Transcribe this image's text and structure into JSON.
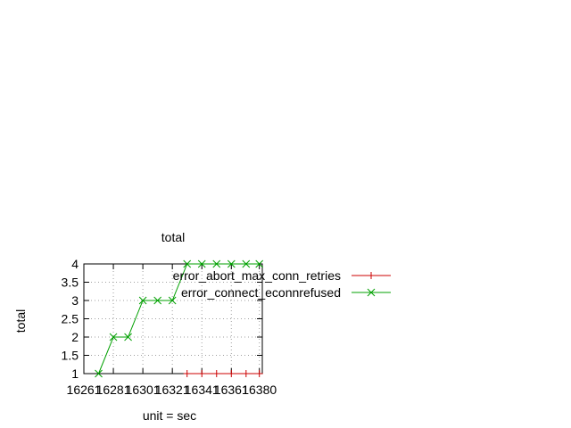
{
  "chart_data": {
    "type": "line",
    "title": "total",
    "xlabel": "unit = sec",
    "ylabel": "total",
    "xlim": [
      16261,
      16382
    ],
    "ylim": [
      1,
      4
    ],
    "grid": true,
    "legend_position": "top-right",
    "xticks": [
      {
        "value": 16261,
        "label": "16261"
      },
      {
        "value": 16281,
        "label": "16281"
      },
      {
        "value": 16301,
        "label": "16301"
      },
      {
        "value": 16321,
        "label": "16321"
      },
      {
        "value": 16341,
        "label": "16341"
      },
      {
        "value": 16361,
        "label": "16361"
      },
      {
        "value": 16380,
        "label": "16380"
      }
    ],
    "yticks": [
      {
        "value": 1,
        "label": "1"
      },
      {
        "value": 1.5,
        "label": "1.5"
      },
      {
        "value": 2,
        "label": "2"
      },
      {
        "value": 2.5,
        "label": "2.5"
      },
      {
        "value": 3,
        "label": "3"
      },
      {
        "value": 3.5,
        "label": "3.5"
      },
      {
        "value": 4,
        "label": "4"
      }
    ],
    "series": [
      {
        "name": "error_abort_max_conn_retries",
        "color": "#cc0000",
        "marker": "plus",
        "points": [
          [
            16331,
            1
          ],
          [
            16341,
            1
          ],
          [
            16351,
            1
          ],
          [
            16361,
            1
          ],
          [
            16371,
            1
          ],
          [
            16380,
            1
          ]
        ]
      },
      {
        "name": "error_connect_econnrefused",
        "color": "#00a000",
        "marker": "cross",
        "points": [
          [
            16271,
            1
          ],
          [
            16281,
            2
          ],
          [
            16291,
            2
          ],
          [
            16301,
            3
          ],
          [
            16311,
            3
          ],
          [
            16321,
            3
          ],
          [
            16331,
            4
          ],
          [
            16341,
            4
          ],
          [
            16351,
            4
          ],
          [
            16361,
            4
          ],
          [
            16371,
            4
          ],
          [
            16380,
            4
          ]
        ]
      }
    ]
  }
}
